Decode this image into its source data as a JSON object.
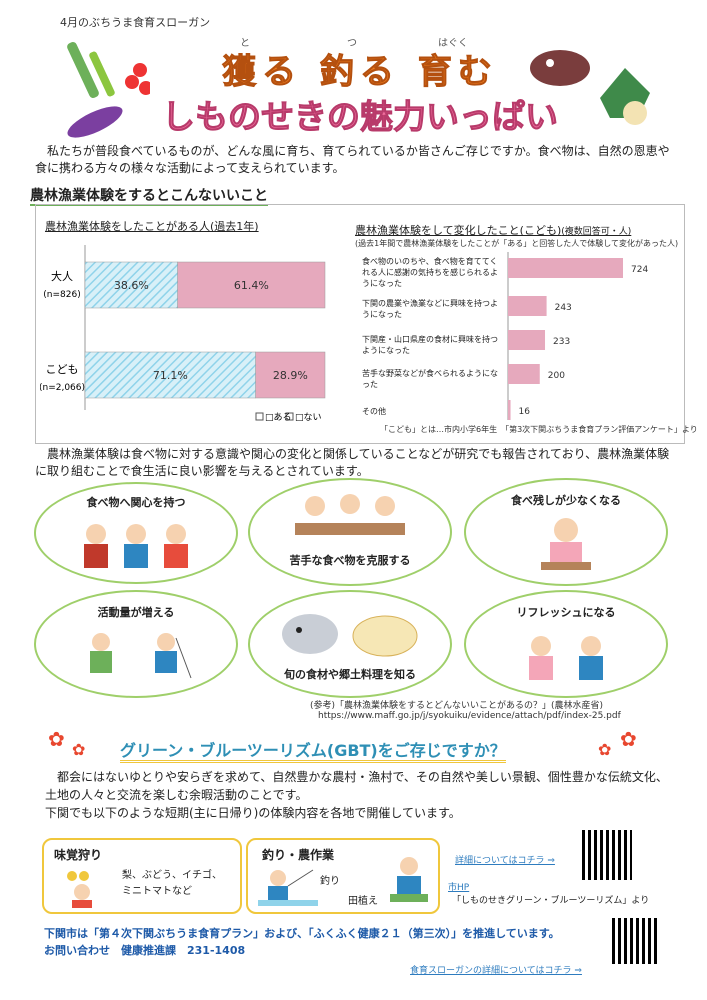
{
  "header": {
    "subtitle": "4月のぶちうま食育スローガン",
    "title_line1": "獲る 釣る 育む",
    "title_line2": "しものせきの魅力いっぱい",
    "ruby": [
      "と",
      "つ",
      "はぐく"
    ]
  },
  "intro": "　私たちが普段食べているものが、どんな風に育ち、育てられているか皆さんご存じですか。食べ物は、自然の恩恵や食に携わる方々の様々な活動によって支えられています。",
  "section1_title": "農林漁業体験をするとこんないいこと",
  "chart_data": [
    {
      "type": "bar",
      "orientation": "horizontal-stacked",
      "title": "農林漁業体験をしたことがある人(過去1年)",
      "categories": [
        "大人\n(n=826)",
        "こども\n(n=2,066)"
      ],
      "category_labels": [
        {
          "main": "大人",
          "n": "(n=826)"
        },
        {
          "main": "こども",
          "n": "(n=2,066)"
        }
      ],
      "series": [
        {
          "name": "ある",
          "values": [
            38.6,
            71.1
          ],
          "labels": [
            "38.6%",
            "71.1%"
          ],
          "color": "#8fd3ea"
        },
        {
          "name": "ない",
          "values": [
            61.4,
            28.9
          ],
          "labels": [
            "61.4%",
            "28.9%"
          ],
          "color": "#e6a9bd"
        }
      ],
      "legend": "bottom-right",
      "legend_text": [
        "□ある",
        "□ない"
      ]
    },
    {
      "type": "bar",
      "orientation": "horizontal",
      "title": "農林漁業体験をして変化したこと(こども)",
      "title_suffix": "(複数回答可・人)",
      "note": "(過去1年間で農林漁業体験をしたことが「ある」と回答した人で体験して変化があった人)",
      "categories": [
        "食べ物のいのちや、食べ物を育ててくれる人に感謝の気持ちを感じられるようになった",
        "下関の農業や漁業などに興味を持つようになった",
        "下関産・山口県産の食材に興味を持つようになった",
        "苦手な野菜などが食べられるようになった",
        "その他"
      ],
      "values": [
        724,
        243,
        233,
        200,
        16
      ],
      "color": "#e6a9bd"
    }
  ],
  "chart_source": "「こども」とは…市内小学6年生　「第3次下関ぶちうま食育プラン評価アンケート」より",
  "para2": "　農林漁業体験は食べ物に対する意識や関心の変化と関係していることなどが研究でも報告されており、農林漁業体験に取り組むことで食生活に良い影響を与えるとされています。",
  "benefits": [
    "食べ物へ関心を持つ",
    "苦手な食べ物を克服する",
    "食べ残しが少なくなる",
    "活動量が増える",
    "旬の食材や郷土料理を知る",
    "リフレッシュになる"
  ],
  "reference": {
    "line1": "(参考)「農林漁業体験をするとどんないいことがあるの？」(農林水産省)",
    "line2": "https://www.maff.go.jp/j/syokuiku/evidence/attach/pdf/index-25.pdf"
  },
  "gbt_title": "グリーン・ブルーツーリズム(GBT)をご存じですか？",
  "para3": "　都会にはないゆとりや安らぎを求めて、自然豊かな農村・漁村で、その自然や美しい景観、個性豊かな伝統文化、土地の人々と交流を楽しむ余暇活動のことです。\n下関でも以下のような短期(主に日帰り)の体験内容を各地で開催しています。",
  "cards": {
    "fruit": {
      "title": "味覚狩り",
      "text": "梨、ぶどう、イチゴ、\nミニトマトなど"
    },
    "fishing": {
      "title": "釣り・農作業",
      "label1": "釣り",
      "label2": "田植え"
    }
  },
  "links": {
    "details": "詳細についてはコチラ ⇒",
    "hp_label": "市HP",
    "hp_text": "「しものせきグリーン・ブルーツーリズム」より",
    "slogan_details": "食育スローガンの詳細についてはコチラ ⇒"
  },
  "footer": {
    "line1": "下関市は「第４次下関ぶちうま食育プラン」および、「ふくふく健康２１（第三次）」を推進しています。",
    "line2": "お問い合わせ　健康推進課　231-1408"
  },
  "colors": {
    "orange": "#f07b1c",
    "pink": "#ef6d9c",
    "green": "#9fcf6a",
    "blue": "#2e8fb5",
    "yellow": "#f0c73c"
  }
}
